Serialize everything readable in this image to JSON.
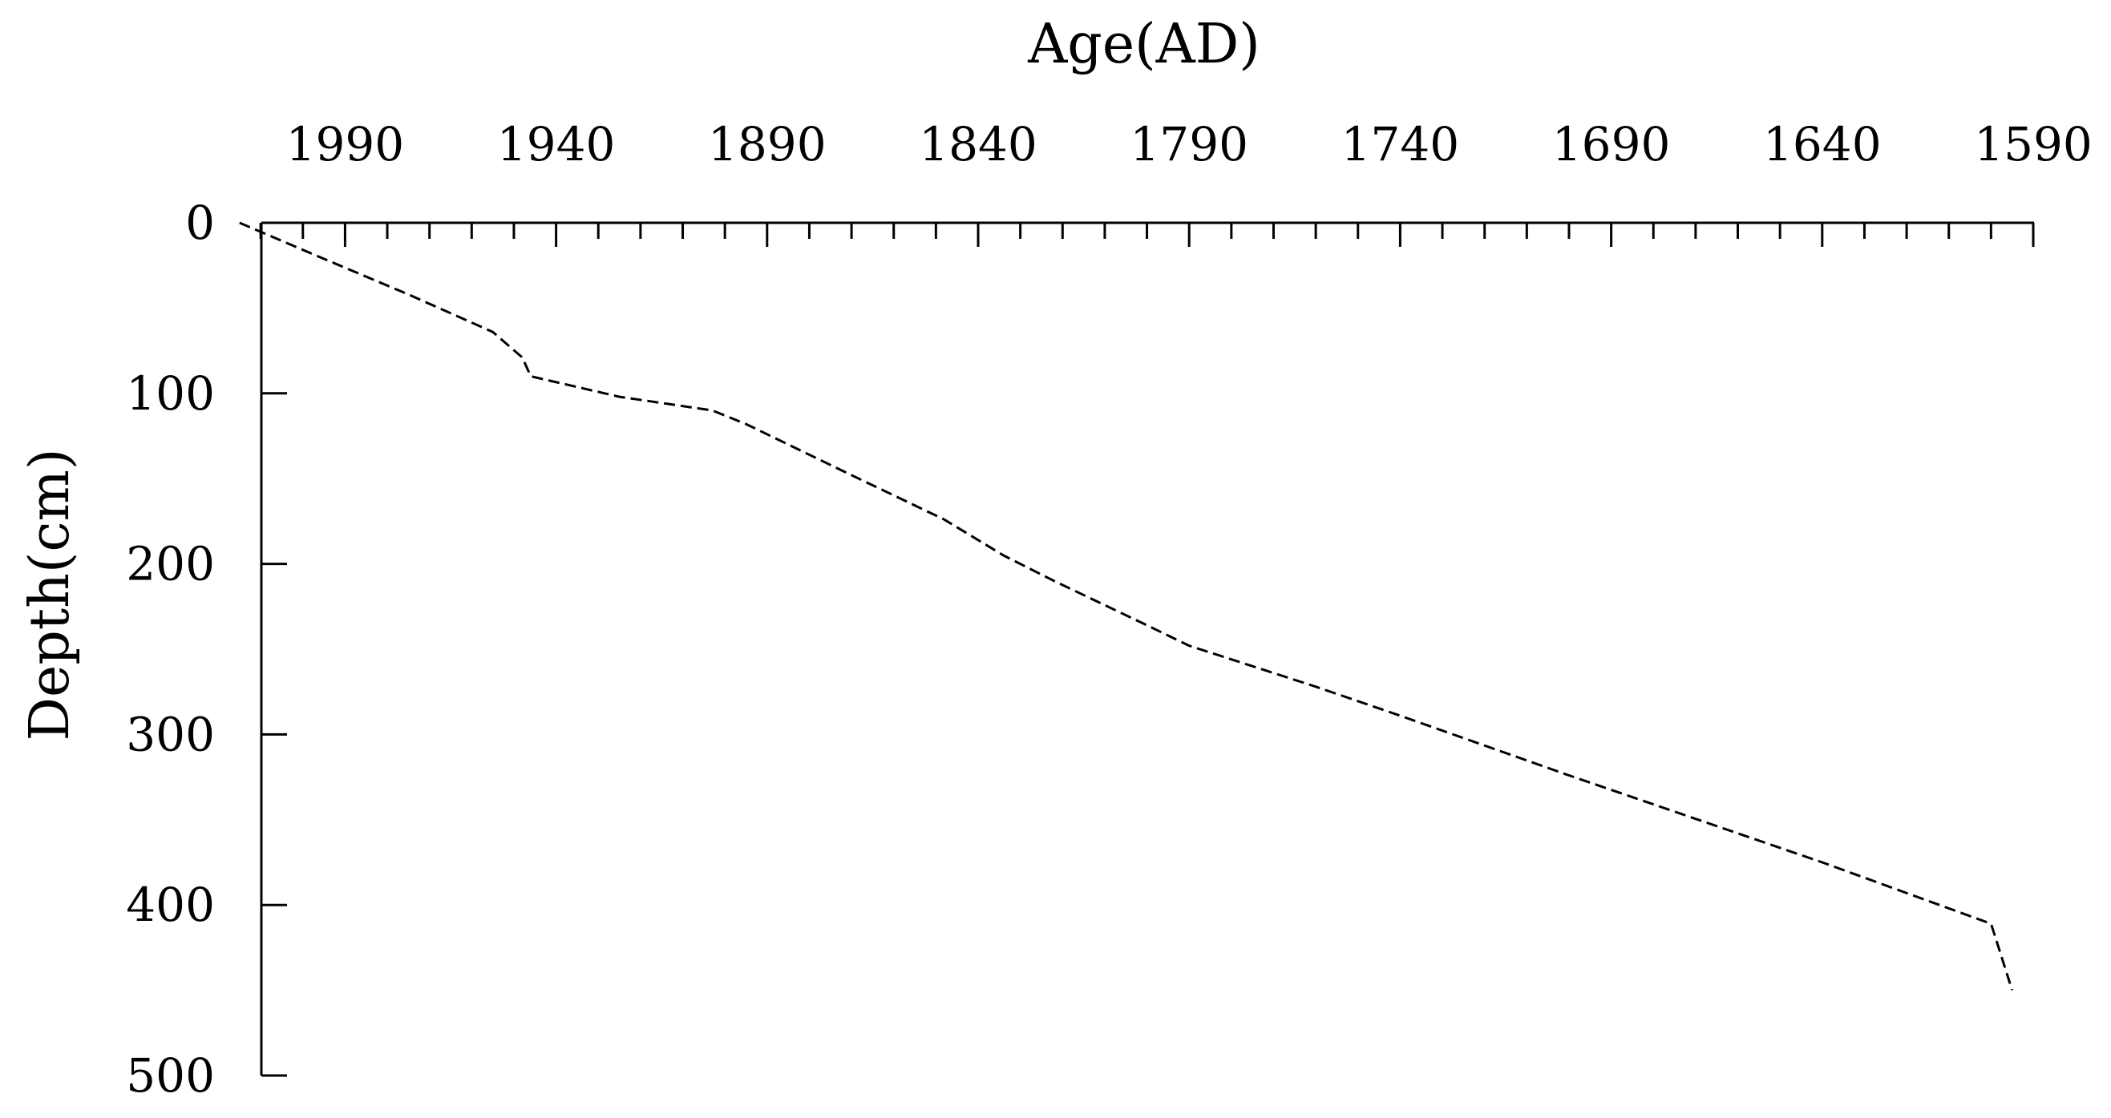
{
  "chart_data": {
    "type": "line",
    "title": "",
    "xlabel": "Age(AD)",
    "ylabel": "Depth(cm)",
    "x_axis_position": "top",
    "x_reversed": true,
    "y_reversed": true,
    "xlim": [
      2020,
      1590
    ],
    "ylim": [
      0,
      500
    ],
    "x_ticks": [
      1990,
      1940,
      1890,
      1840,
      1790,
      1740,
      1690,
      1640,
      1590
    ],
    "x_tick_labels": [
      "1990",
      "1940",
      "1890",
      "1840",
      "1790",
      "1740",
      "1690",
      "1640",
      "1590"
    ],
    "y_ticks": [
      0,
      100,
      200,
      300,
      400,
      500
    ],
    "y_tick_labels": [
      "0",
      "100",
      "200",
      "300",
      "400",
      "500"
    ],
    "grid": false,
    "line_style": "dashed",
    "line_color": "#000000",
    "series": [
      {
        "x": [
          2015,
          1998,
          1975,
          1955,
          1948,
          1946,
          1925,
          1903,
          1895,
          1870,
          1848,
          1834,
          1822,
          1800,
          1790,
          1760,
          1740,
          1700,
          1680,
          1640,
          1600,
          1595
        ],
        "y": [
          0,
          18,
          42,
          64,
          79,
          90,
          102,
          110,
          118,
          148,
          174,
          195,
          210,
          236,
          248,
          272,
          289,
          324,
          341,
          375,
          411,
          450
        ]
      }
    ]
  }
}
